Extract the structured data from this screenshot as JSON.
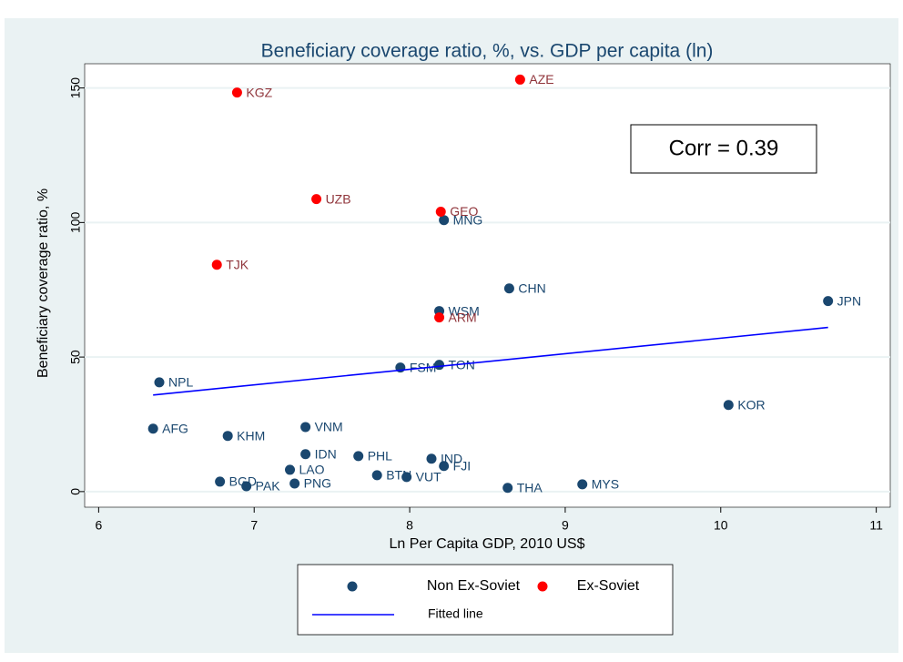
{
  "chart_data": {
    "type": "scatter",
    "title": "Beneficiary coverage ratio, %, vs. GDP per capita (ln)",
    "x_label": "Ln Per Capita GDP, 2010 US$",
    "y_label": "Beneficiary coverage ratio, %",
    "annotation": "Corr = 0.39",
    "xlim": [
      5.91,
      11.09
    ],
    "ylim": [
      -5.8,
      159
    ],
    "xticks": [
      6,
      7,
      8,
      9,
      10,
      11
    ],
    "yticks": [
      0,
      50,
      100,
      150
    ],
    "grid": true,
    "legend": "bottom",
    "series": [
      {
        "name": "Non Ex-Soviet",
        "color": "#1a476f",
        "label_color": "#1a476f",
        "labels": [
          "NPL",
          "AFG",
          "KHM",
          "BGD",
          "PAK",
          "LAO",
          "PNG",
          "IDN",
          "VNM",
          "PHL",
          "BTN",
          "VUT",
          "FSM",
          "TON",
          "WSM",
          "IND",
          "FJI",
          "MNG",
          "CHN",
          "THA",
          "MYS",
          "KOR",
          "JPN"
        ],
        "x": [
          6.39,
          6.35,
          6.83,
          6.78,
          6.95,
          7.23,
          7.26,
          7.33,
          7.33,
          7.67,
          7.79,
          7.98,
          7.94,
          8.19,
          8.19,
          8.14,
          8.22,
          8.22,
          8.64,
          8.63,
          9.11,
          10.05,
          10.69
        ],
        "values": [
          40.6,
          23.4,
          20.7,
          3.7,
          2.0,
          8.1,
          3.0,
          13.9,
          24.0,
          13.2,
          6.1,
          5.4,
          46.1,
          47.1,
          67.1,
          12.2,
          9.5,
          100.9,
          75.5,
          1.4,
          2.7,
          32.2,
          70.8
        ]
      },
      {
        "name": "Ex-Soviet",
        "color": "#ff0000",
        "label_color": "#90353b",
        "labels": [
          "KGZ",
          "AZE",
          "UZB",
          "GEO",
          "TJK",
          "ARM"
        ],
        "x": [
          6.89,
          8.71,
          7.4,
          8.2,
          6.76,
          8.19
        ],
        "values": [
          148.3,
          153.1,
          108.7,
          104.0,
          84.3,
          64.7
        ]
      },
      {
        "name": "Fitted line",
        "type": "line",
        "color": "#0000ff",
        "x": [
          6.35,
          10.69
        ],
        "values": [
          35.9,
          61.0
        ]
      }
    ]
  }
}
